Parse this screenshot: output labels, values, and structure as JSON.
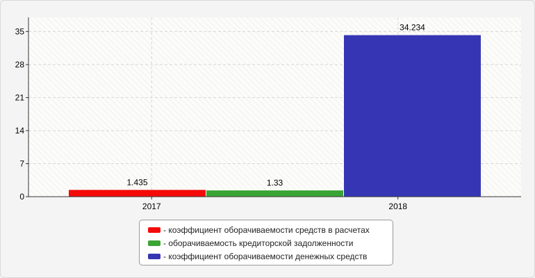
{
  "chart_data": {
    "type": "bar",
    "categories": [
      "2017",
      "2018"
    ],
    "series": [
      {
        "name": "- коэффициент оборачиваемости средств в расчетах",
        "color": "#f50a0a",
        "values": [
          1.435,
          null
        ]
      },
      {
        "name": "- оборачиваемость кредиторской задолженности",
        "color": "#3aa534",
        "values": [
          1.33,
          null
        ]
      },
      {
        "name": "- коэффициент оборачиваемости денежных средств",
        "color": "#3636b4",
        "values": [
          null,
          34.234
        ]
      }
    ],
    "data_labels": [
      "1.435",
      "1.33",
      "34.234"
    ],
    "yticks": [
      "0",
      "7",
      "14",
      "21",
      "28",
      "35"
    ],
    "ylim": [
      0,
      38
    ],
    "grid": true,
    "legend_position": "bottom"
  }
}
